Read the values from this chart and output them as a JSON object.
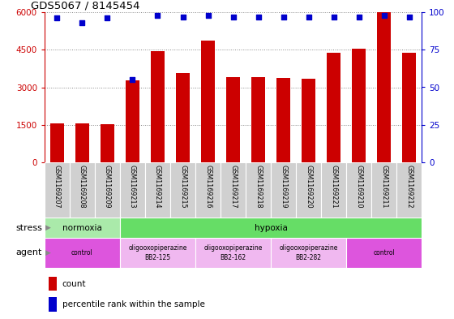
{
  "title": "GDS5067 / 8145454",
  "samples": [
    "GSM1169207",
    "GSM1169208",
    "GSM1169209",
    "GSM1169213",
    "GSM1169214",
    "GSM1169215",
    "GSM1169216",
    "GSM1169217",
    "GSM1169218",
    "GSM1169219",
    "GSM1169220",
    "GSM1169221",
    "GSM1169210",
    "GSM1169211",
    "GSM1169212"
  ],
  "counts": [
    1560,
    1560,
    1510,
    3270,
    4440,
    3560,
    4870,
    3390,
    3390,
    3380,
    3340,
    4380,
    4540,
    6000,
    4380
  ],
  "percentiles": [
    96,
    93,
    96,
    55,
    98,
    97,
    98,
    97,
    97,
    97,
    97,
    97,
    97,
    98,
    97
  ],
  "bar_color": "#cc0000",
  "dot_color": "#0000cc",
  "ylim_left": [
    0,
    6000
  ],
  "ylim_right": [
    0,
    100
  ],
  "yticks_left": [
    0,
    1500,
    3000,
    4500,
    6000
  ],
  "yticks_right": [
    0,
    25,
    50,
    75,
    100
  ],
  "stress_groups": [
    {
      "label": "normoxia",
      "start": 0,
      "end": 3,
      "color": "#aaeaaa"
    },
    {
      "label": "hypoxia",
      "start": 3,
      "end": 15,
      "color": "#66dd66"
    }
  ],
  "agent_groups": [
    {
      "label": "control",
      "start": 0,
      "end": 3,
      "color": "#dd55dd"
    },
    {
      "label": "oligooxopiperazine\nBB2-125",
      "start": 3,
      "end": 6,
      "color": "#f0b8f0"
    },
    {
      "label": "oligooxopiperazine\nBB2-162",
      "start": 6,
      "end": 9,
      "color": "#f0b8f0"
    },
    {
      "label": "oligooxopiperazine\nBB2-282",
      "start": 9,
      "end": 12,
      "color": "#f0b8f0"
    },
    {
      "label": "control",
      "start": 12,
      "end": 15,
      "color": "#dd55dd"
    }
  ],
  "stress_label": "stress",
  "agent_label": "agent",
  "legend_count": "count",
  "legend_pct": "percentile rank within the sample",
  "ylabel_left_color": "#cc0000",
  "ylabel_right_color": "#0000cc",
  "bg_color": "#ffffff",
  "grid_color": "#888888",
  "tick_area_bg": "#d0d0d0",
  "bar_width": 0.55
}
